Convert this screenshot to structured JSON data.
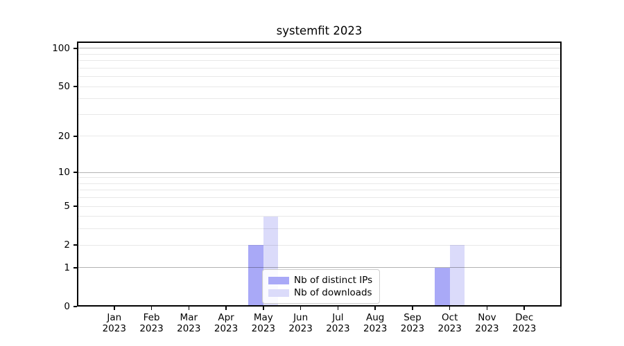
{
  "figure": {
    "title": "systemfit 2023",
    "background": "#ffffff"
  },
  "chart_data": {
    "type": "bar",
    "title": "systemfit 2023",
    "xlabel": "",
    "ylabel": "",
    "categories": [
      {
        "month": "Jan",
        "year": "2023"
      },
      {
        "month": "Feb",
        "year": "2023"
      },
      {
        "month": "Mar",
        "year": "2023"
      },
      {
        "month": "Apr",
        "year": "2023"
      },
      {
        "month": "May",
        "year": "2023"
      },
      {
        "month": "Jun",
        "year": "2023"
      },
      {
        "month": "Jul",
        "year": "2023"
      },
      {
        "month": "Aug",
        "year": "2023"
      },
      {
        "month": "Sep",
        "year": "2023"
      },
      {
        "month": "Oct",
        "year": "2023"
      },
      {
        "month": "Nov",
        "year": "2023"
      },
      {
        "month": "Dec",
        "year": "2023"
      }
    ],
    "series": [
      {
        "name": "Nb of distinct IPs",
        "color": "#a9a9f7",
        "values": [
          0,
          0,
          0,
          0,
          2,
          0,
          0,
          0,
          0,
          1,
          0,
          0
        ]
      },
      {
        "name": "Nb of downloads",
        "color": "#dbdbfa",
        "values": [
          0,
          0,
          0,
          0,
          4,
          0,
          0,
          0,
          0,
          2,
          0,
          0
        ]
      }
    ],
    "y_axis": {
      "scale": "log1p",
      "ylim": [
        0,
        113
      ],
      "tick_values": [
        0,
        1,
        2,
        5,
        10,
        20,
        50,
        100
      ],
      "tick_labels": [
        "0",
        "1",
        "2",
        "5",
        "10",
        "20",
        "50",
        "100"
      ],
      "major_gridlines": [
        1,
        10,
        100
      ],
      "minor_gridlines": [
        2,
        3,
        4,
        5,
        6,
        7,
        8,
        9,
        20,
        30,
        40,
        50,
        60,
        70,
        80,
        90
      ]
    },
    "grid": true,
    "legend_position": "inside lower center",
    "colors": {
      "spine": "#000000",
      "major_grid": "rgba(0,0,0,0.30)",
      "minor_grid": "rgba(0,0,0,0.09)",
      "background": "#ffffff"
    }
  }
}
